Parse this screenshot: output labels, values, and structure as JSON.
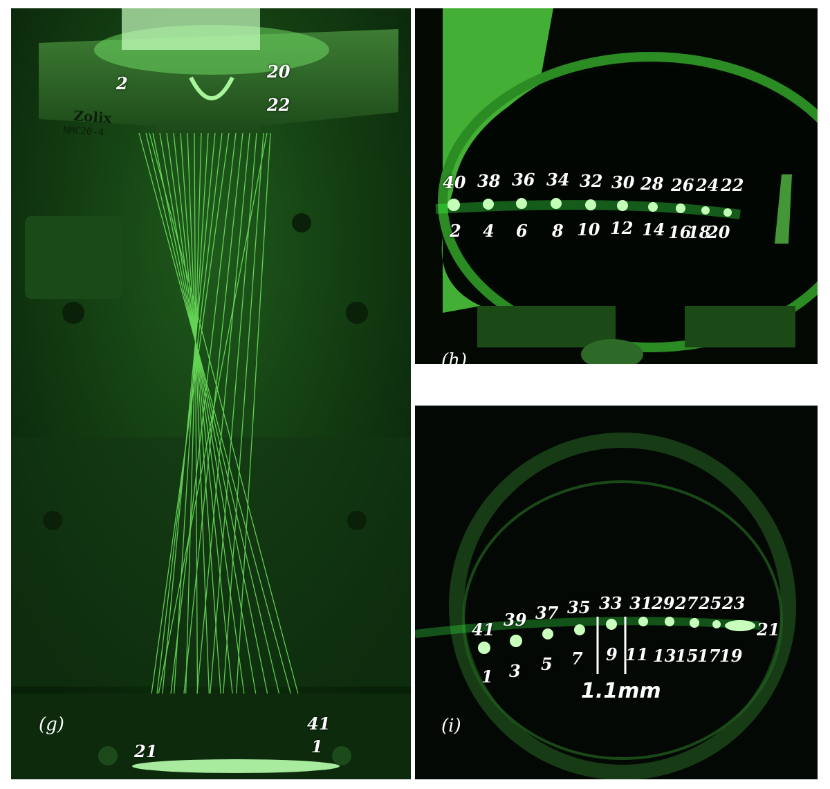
{
  "panels": {
    "g": {
      "letter": "(g)",
      "brand": "Zolix",
      "model": "NMC20-4",
      "labels": {
        "top_left": "2",
        "top_right_a": "20",
        "top_right_b": "22",
        "bottom_left": "21",
        "bottom_right_a": "41",
        "bottom_right_b": "1"
      }
    },
    "h": {
      "letter": "(h)",
      "top_row": [
        "40",
        "38",
        "36",
        "34",
        "32",
        "30",
        "28",
        "26",
        "24",
        "22"
      ],
      "bottom_row": [
        "2",
        "4",
        "6",
        "8",
        "10",
        "12",
        "14",
        "16",
        "18",
        "20"
      ]
    },
    "i": {
      "letter": "(i)",
      "top_row": [
        "41",
        "39",
        "37",
        "35",
        "33",
        "31",
        "29",
        "27",
        "25",
        "23"
      ],
      "bottom_row": [
        "1",
        "3",
        "5",
        "7",
        "9",
        "11",
        "13",
        "15",
        "17",
        "19"
      ],
      "end_label": "21",
      "scale_label": "1.1mm"
    }
  },
  "colors": {
    "laser": "#39ff4a",
    "background": "#000000",
    "ambient": "#0f3a10"
  }
}
